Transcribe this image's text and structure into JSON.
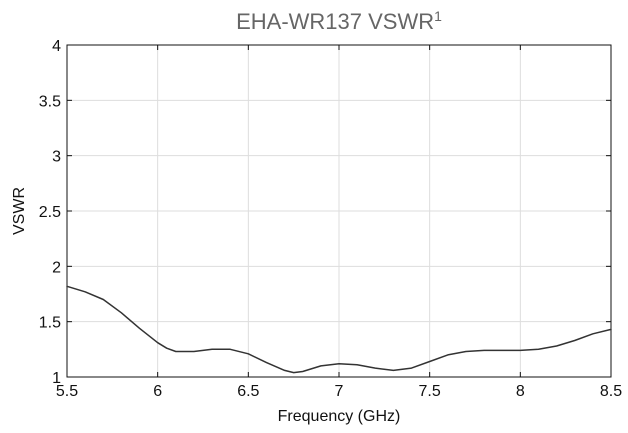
{
  "chart_data": {
    "type": "line",
    "title": "EHA-WR137 VSWR",
    "title_superscript": "1",
    "xlabel": "Frequency (GHz)",
    "ylabel": "VSWR",
    "xlim": [
      5.5,
      8.5
    ],
    "ylim": [
      1,
      4
    ],
    "xticks": [
      "5.5",
      "6",
      "6.5",
      "7",
      "7.5",
      "8",
      "8.5"
    ],
    "yticks": [
      "1",
      "1.5",
      "2",
      "2.5",
      "3",
      "3.5",
      "4"
    ],
    "grid": true,
    "line_color": "#333333",
    "series": [
      {
        "x": [
          5.5,
          5.6,
          5.7,
          5.8,
          5.9,
          6.0,
          6.05,
          6.1,
          6.2,
          6.3,
          6.4,
          6.5,
          6.6,
          6.7,
          6.75,
          6.8,
          6.9,
          7.0,
          7.1,
          7.2,
          7.3,
          7.4,
          7.5,
          7.6,
          7.7,
          7.8,
          7.9,
          8.0,
          8.1,
          8.2,
          8.3,
          8.4,
          8.5
        ],
        "y": [
          1.82,
          1.77,
          1.7,
          1.58,
          1.44,
          1.31,
          1.26,
          1.23,
          1.23,
          1.25,
          1.25,
          1.21,
          1.13,
          1.06,
          1.04,
          1.05,
          1.1,
          1.12,
          1.11,
          1.08,
          1.06,
          1.08,
          1.14,
          1.2,
          1.23,
          1.24,
          1.24,
          1.24,
          1.25,
          1.28,
          1.33,
          1.39,
          1.43
        ]
      }
    ]
  }
}
